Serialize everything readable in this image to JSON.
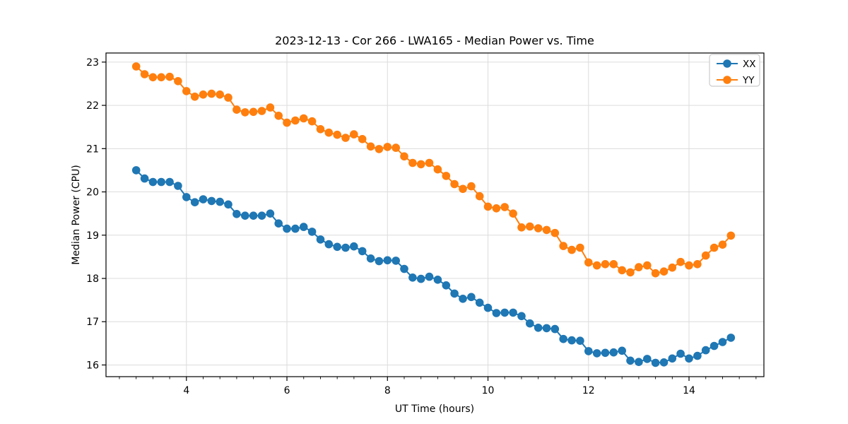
{
  "figure": {
    "title": "2023-12-13 - Cor 266 - LWA165 - Median Power vs. Time",
    "xlabel": "UT Time (hours)",
    "ylabel": "Median Power (CPU)"
  },
  "chart_data": {
    "type": "line",
    "title": "2023-12-13 - Cor 266 - LWA165 - Median Power vs. Time",
    "xlabel": "UT Time (hours)",
    "ylabel": "Median Power (CPU)",
    "xlim": [
      2.4,
      15.49
    ],
    "ylim": [
      15.73,
      23.21
    ],
    "xticks": [
      4,
      6,
      8,
      10,
      12,
      14
    ],
    "yticks": [
      16,
      17,
      18,
      19,
      20,
      21,
      22,
      23
    ],
    "x_minor_tick_step": 0.33333,
    "grid": true,
    "grid_color": "#dcdcdc",
    "legend": {
      "position": "upper right",
      "entries": [
        "XX",
        "YY"
      ]
    },
    "marker": "circle",
    "x": [
      3.0,
      3.167,
      3.333,
      3.5,
      3.667,
      3.833,
      4.0,
      4.167,
      4.333,
      4.5,
      4.667,
      4.833,
      5.0,
      5.167,
      5.333,
      5.5,
      5.667,
      5.833,
      6.0,
      6.167,
      6.333,
      6.5,
      6.667,
      6.833,
      7.0,
      7.167,
      7.333,
      7.5,
      7.667,
      7.833,
      8.0,
      8.167,
      8.333,
      8.5,
      8.667,
      8.833,
      9.0,
      9.167,
      9.333,
      9.5,
      9.667,
      9.833,
      10.0,
      10.167,
      10.333,
      10.5,
      10.667,
      10.833,
      11.0,
      11.167,
      11.333,
      11.5,
      11.667,
      11.833,
      12.0,
      12.167,
      12.333,
      12.5,
      12.667,
      12.833,
      13.0,
      13.167,
      13.333,
      13.5,
      13.667,
      13.833,
      14.0,
      14.167,
      14.333,
      14.5,
      14.667,
      14.833
    ],
    "series": [
      {
        "name": "XX",
        "color": "#1f77b4",
        "values": [
          20.5,
          20.31,
          20.23,
          20.23,
          20.23,
          20.14,
          19.88,
          19.76,
          19.83,
          19.79,
          19.77,
          19.71,
          19.49,
          19.45,
          19.45,
          19.45,
          19.5,
          19.27,
          19.15,
          19.15,
          19.19,
          19.08,
          18.9,
          18.79,
          18.73,
          18.71,
          18.74,
          18.63,
          18.46,
          18.4,
          18.42,
          18.41,
          18.22,
          18.02,
          17.99,
          18.04,
          17.97,
          17.84,
          17.65,
          17.53,
          17.57,
          17.44,
          17.32,
          17.2,
          17.21,
          17.21,
          17.13,
          16.96,
          16.86,
          16.85,
          16.83,
          16.6,
          16.57,
          16.56,
          16.32,
          16.27,
          16.28,
          16.29,
          16.33,
          16.1,
          16.07,
          16.14,
          16.05,
          16.06,
          16.15,
          16.26,
          16.15,
          16.21,
          16.34,
          16.44,
          16.53,
          16.63
        ]
      },
      {
        "name": "YY",
        "color": "#ff7f0e",
        "values": [
          22.9,
          22.72,
          22.65,
          22.65,
          22.66,
          22.56,
          22.33,
          22.2,
          22.25,
          22.27,
          22.25,
          22.18,
          21.9,
          21.84,
          21.85,
          21.87,
          21.95,
          21.76,
          21.6,
          21.65,
          21.7,
          21.63,
          21.45,
          21.37,
          21.32,
          21.25,
          21.33,
          21.22,
          21.05,
          20.99,
          21.04,
          21.02,
          20.82,
          20.67,
          20.64,
          20.67,
          20.52,
          20.37,
          20.18,
          20.07,
          20.13,
          19.9,
          19.66,
          19.62,
          19.65,
          19.5,
          19.18,
          19.2,
          19.16,
          19.12,
          19.05,
          18.75,
          18.66,
          18.71,
          18.37,
          18.3,
          18.33,
          18.33,
          18.19,
          18.14,
          18.26,
          18.3,
          18.12,
          18.16,
          18.25,
          18.38,
          18.3,
          18.33,
          18.53,
          18.71,
          18.78,
          18.99
        ]
      }
    ]
  }
}
